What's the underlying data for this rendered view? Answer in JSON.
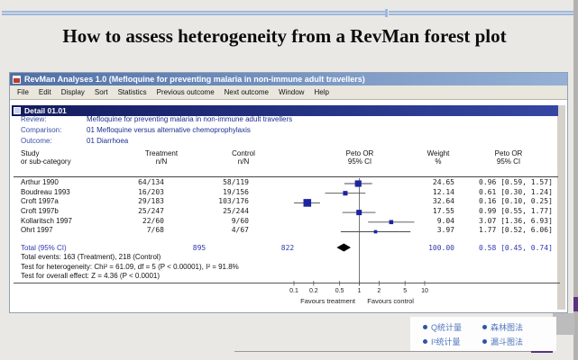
{
  "slide": {
    "title": "How to assess heterogeneity from a RevMan forest plot",
    "accent_line_color": "#9db8dc"
  },
  "window": {
    "title": "RevMan Analyses 1.0 (Mefloquine for preventing malaria in non-immune adult travellers)",
    "menu": [
      "File",
      "Edit",
      "Display",
      "Sort",
      "Statistics",
      "Previous outcome",
      "Next outcome",
      "Window",
      "Help"
    ],
    "detail_title": "Detail 01.01",
    "meta": {
      "review_label": "Review:",
      "review": "Mefloquine for preventing malaria in non-immune adult travellers",
      "comparison_label": "Comparison:",
      "comparison": "01 Mefloquine versus alternative chemoprophylaxis",
      "outcome_label": "Outcome:",
      "outcome": "01 Diarrhoea"
    }
  },
  "table": {
    "headers": {
      "study_1": "Study",
      "study_2": "or sub-category",
      "treatment_1": "Treatment",
      "treatment_2": "n/N",
      "control_1": "Control",
      "control_2": "n/N",
      "plot_1": "Peto OR",
      "plot_2": "95% CI",
      "weight_1": "Weight",
      "weight_2": "%",
      "or_1": "Peto OR",
      "or_2": "95% CI"
    },
    "rows": [
      {
        "study": "Arthur 1990",
        "treatment": "64/134",
        "control": "58/119",
        "weight": "24.65",
        "or": "0.96 [0.59, 1.57]"
      },
      {
        "study": "Boudreau 1993",
        "treatment": "16/203",
        "control": "19/156",
        "weight": "12.14",
        "or": "0.61 [0.30, 1.24]"
      },
      {
        "study": "Croft 1997a",
        "treatment": "29/183",
        "control": "103/176",
        "weight": "32.64",
        "or": "0.16 [0.10, 0.25]"
      },
      {
        "study": "Croft 1997b",
        "treatment": "25/247",
        "control": "25/244",
        "weight": "17.55",
        "or": "0.99 [0.55, 1.77]"
      },
      {
        "study": "Kollaritsch 1997",
        "treatment": "22/60",
        "control": "9/60",
        "weight": "9.04",
        "or": "3.07 [1.36, 6.93]"
      },
      {
        "study": "Ohrt 1997",
        "treatment": "7/68",
        "control": "4/67",
        "weight": "3.97",
        "or": "1.77 [0.52, 6.06]"
      }
    ],
    "total": {
      "label": "Total (95% CI)",
      "treatment": "895",
      "control": "822",
      "weight": "100.00",
      "or": "0.58 [0.45, 0.74]"
    },
    "footnotes": [
      "Total events: 163 (Treatment), 218 (Control)",
      "Test for heterogeneity: Chi² = 61.09, df = 5 (P < 0.00001), I² = 91.8%",
      "Test for overall effect: Z = 4.36 (P < 0.0001)"
    ]
  },
  "chart_data": {
    "type": "forest",
    "effect_measure": "Peto OR",
    "x_scale": "log",
    "xlim": [
      0.1,
      10
    ],
    "axis_ticks": [
      0.1,
      0.2,
      0.5,
      1,
      2,
      5,
      10
    ],
    "studies": [
      {
        "name": "Arthur 1990",
        "or": 0.96,
        "ci_low": 0.59,
        "ci_high": 1.57,
        "weight": 24.65
      },
      {
        "name": "Boudreau 1993",
        "or": 0.61,
        "ci_low": 0.3,
        "ci_high": 1.24,
        "weight": 12.14
      },
      {
        "name": "Croft 1997a",
        "or": 0.16,
        "ci_low": 0.1,
        "ci_high": 0.25,
        "weight": 32.64
      },
      {
        "name": "Croft 1997b",
        "or": 0.99,
        "ci_low": 0.55,
        "ci_high": 1.77,
        "weight": 17.55
      },
      {
        "name": "Kollaritsch 1997",
        "or": 3.07,
        "ci_low": 1.36,
        "ci_high": 6.93,
        "weight": 9.04
      },
      {
        "name": "Ohrt 1997",
        "or": 1.77,
        "ci_low": 0.52,
        "ci_high": 6.06,
        "weight": 3.97
      }
    ],
    "total": {
      "or": 0.58,
      "ci_low": 0.45,
      "ci_high": 0.74,
      "weight": 100.0
    },
    "favours_left": "Favours treatment",
    "favours_right": "Favours control",
    "marker_color": "#1c24a0",
    "line_color": "#4a4a4a",
    "diamond_color": "#000000",
    "axis_color": "#555555"
  },
  "callouts": {
    "items": [
      "Q统计量",
      "森林图法",
      "I²统计量",
      "漏斗图法"
    ]
  }
}
